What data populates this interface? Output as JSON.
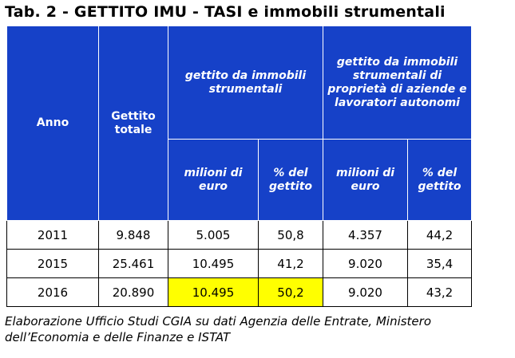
{
  "title": "Tab. 2 - GETTITO IMU - TASI e immobili strumentali",
  "headers": {
    "anno": "Anno",
    "gettito_totale": "Gettito totale",
    "group1": "gettito da immobili strumentali",
    "group2": "gettito da immobili strumentali di proprietà di aziende e lavoratori autonomi",
    "sub": {
      "milioni_1": "milioni di euro",
      "perc_1": "% del gettito",
      "milioni_2": "milioni di euro",
      "perc_2": "% del gettito"
    }
  },
  "rows": [
    {
      "anno": "2011",
      "totale": "9.848",
      "mil1": "5.005",
      "perc1": "50,8",
      "mil2": "4.357",
      "perc2": "44,2"
    },
    {
      "anno": "2015",
      "totale": "25.461",
      "mil1": "10.495",
      "perc1": "41,2",
      "mil2": "9.020",
      "perc2": "35,4"
    },
    {
      "anno": "2016",
      "totale": "20.890",
      "mil1": "10.495",
      "perc1": "50,2",
      "mil2": "9.020",
      "perc2": "43,2"
    }
  ],
  "highlight_color": "#ffff00",
  "header_color": "#1641c8",
  "note": "Elaborazione  Ufficio Studi CGIA su dati Agenzia delle Entrate, Ministero dell’Economia e delle Finanze e ISTAT"
}
